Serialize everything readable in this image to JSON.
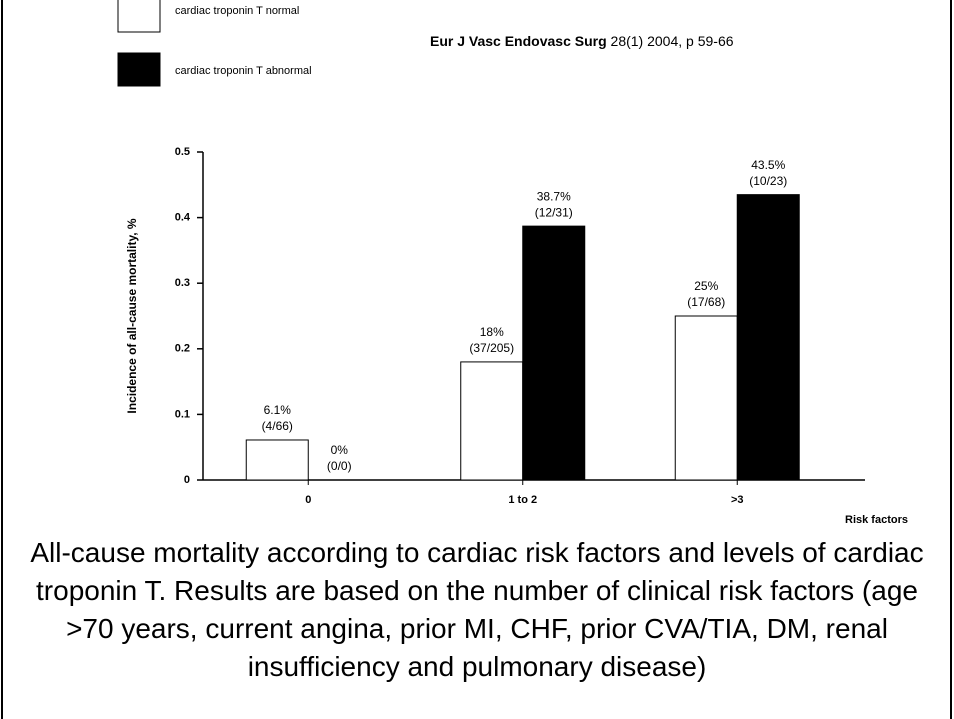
{
  "chart_data": {
    "type": "bar",
    "source": {
      "journal": "Eur J Vasc Endovasc Surg",
      "citation": "28(1) 2004, p 59-66"
    },
    "y_label": "Incidence of all-cause mortality, %",
    "x_label": "Risk factors",
    "categories": [
      "0",
      "1 to 2",
      ">3"
    ],
    "series": [
      {
        "name": "cardiac troponin T normal",
        "color": "#ffffff",
        "values": [
          0.061,
          0.18,
          0.25
        ],
        "value_labels": [
          "6.1%",
          "18%",
          "25%"
        ],
        "count_labels": [
          "(4/66)",
          "(37/205)",
          "(17/68)"
        ]
      },
      {
        "name": "cardiac troponin T abnormal",
        "color": "#000000",
        "values": [
          0,
          0.387,
          0.435
        ],
        "value_labels": [
          "0%",
          "38.7%",
          "43.5%"
        ],
        "count_labels": [
          "(0/0)",
          "(12/31)",
          "(10/23)"
        ]
      }
    ],
    "ylim": [
      0,
      0.5
    ],
    "yticks": [
      0,
      0.1,
      0.2,
      0.3,
      0.4,
      0.5
    ],
    "grid": false,
    "legend": "top-left",
    "caption": "All-cause mortality according to cardiac risk factors and levels of cardiac troponin T. Results are based on the number of clinical risk factors (age >70 years, current angina, prior MI, CHF, prior CVA/TIA, DM, renal insufficiency and pulmonary disease)"
  }
}
